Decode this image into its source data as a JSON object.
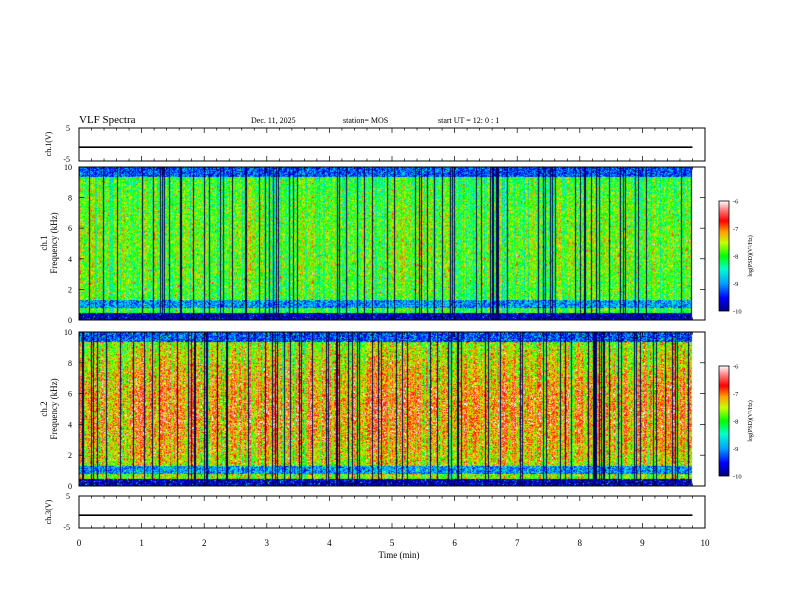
{
  "header": {
    "title": "VLF Spectra",
    "date": "Dec. 11, 2025",
    "station": "station= MOS",
    "start": "start  UT  =   12: 0  : 1"
  },
  "chart_data": [
    {
      "type": "line",
      "name": "ch1-waveform",
      "ylabel": "ch.1(V)",
      "ylim": [
        -5,
        5
      ],
      "yticks": [
        "5",
        "-5"
      ],
      "xlim": [
        0,
        10
      ],
      "baseline": -0.8,
      "series": [
        {
          "name": "ch.1",
          "x": [
            0,
            9.8
          ],
          "values": [
            -0.8,
            -0.8
          ]
        }
      ]
    },
    {
      "type": "heatmap",
      "name": "ch1-spectrogram",
      "ylabel_1": "ch.1",
      "ylabel_2": "Frequency  (kHz)",
      "ylim": [
        0,
        10
      ],
      "yticks": [
        "0",
        "2",
        "4",
        "6",
        "8",
        "10"
      ],
      "xlim": [
        0,
        10
      ],
      "data_end_min": 9.8,
      "colorbar": {
        "label": "log(PSD)(V²/Hz)",
        "ticks": [
          "-6",
          "-7",
          "-8",
          "-9",
          "-10"
        ],
        "range": [
          -10,
          -6
        ]
      }
    },
    {
      "type": "heatmap",
      "name": "ch2-spectrogram",
      "ylabel_1": "ch.2",
      "ylabel_2": "Frequency  (kHz)",
      "ylim": [
        0,
        10
      ],
      "yticks": [
        "0",
        "2",
        "4",
        "6",
        "8",
        "10"
      ],
      "xlim": [
        0,
        10
      ],
      "data_end_min": 9.8,
      "colorbar": {
        "label": "log(PSD)(V²/Hz)",
        "ticks": [
          "-6",
          "-7",
          "-8",
          "-9",
          "-10"
        ],
        "range": [
          -10,
          -6
        ]
      }
    },
    {
      "type": "line",
      "name": "ch3-waveform",
      "ylabel": "ch.3(V)",
      "ylim": [
        -5,
        5
      ],
      "yticks": [
        "5",
        "-5"
      ],
      "xlim": [
        0,
        10
      ],
      "baseline": -1.0,
      "xlabel": "Time  (min)",
      "xticks": [
        "0",
        "1",
        "2",
        "3",
        "4",
        "5",
        "6",
        "7",
        "8",
        "9",
        "10"
      ],
      "series": [
        {
          "name": "ch.3",
          "x": [
            0,
            9.8
          ],
          "values": [
            -1.0,
            -1.0
          ]
        }
      ]
    }
  ]
}
